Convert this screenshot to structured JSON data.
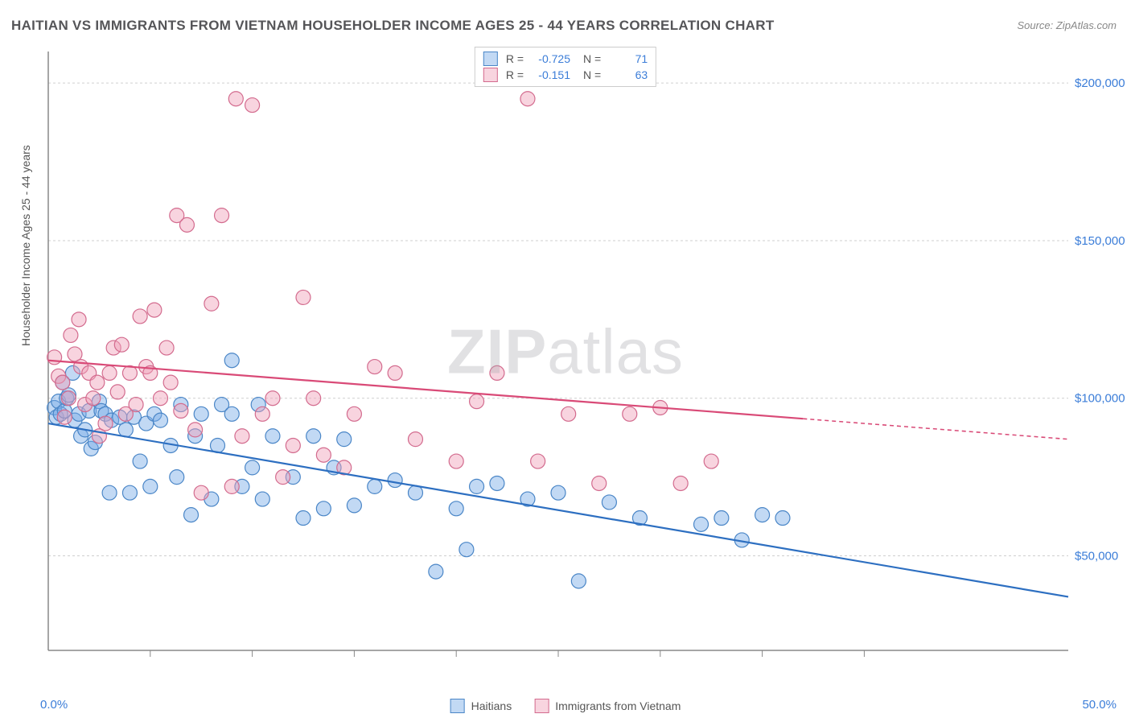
{
  "title": "HAITIAN VS IMMIGRANTS FROM VIETNAM HOUSEHOLDER INCOME AGES 25 - 44 YEARS CORRELATION CHART",
  "source": "Source: ZipAtlas.com",
  "watermark_bold": "ZIP",
  "watermark_rest": "atlas",
  "chart": {
    "type": "scatter",
    "y_axis_label": "Householder Income Ages 25 - 44 years",
    "xlim": [
      0,
      50
    ],
    "ylim": [
      20000,
      210000
    ],
    "x_min_label": "0.0%",
    "x_max_label": "50.0%",
    "x_ticks": [
      5,
      10,
      15,
      20,
      25,
      30,
      35,
      40
    ],
    "y_ticks": [
      50000,
      100000,
      150000,
      200000
    ],
    "y_tick_labels": [
      "$50,000",
      "$100,000",
      "$150,000",
      "$200,000"
    ],
    "grid_color": "#cfcfcf",
    "axis_color": "#888888",
    "axis_label_color": "#3b7dd8",
    "marker_radius": 9,
    "marker_stroke_width": 1.2,
    "line_width": 2.2,
    "series": [
      {
        "name": "Haitians",
        "fill": "rgba(120,170,230,0.45)",
        "stroke": "#4a86c7",
        "line_color": "#2d6fc1",
        "R": "-0.725",
        "N": "71",
        "trend": {
          "x1": 0,
          "y1": 92000,
          "x2": 50,
          "y2": 37000,
          "solid_until_x": 50
        },
        "points": [
          [
            0.3,
            97000
          ],
          [
            0.4,
            94000
          ],
          [
            0.5,
            99000
          ],
          [
            0.6,
            95000
          ],
          [
            0.7,
            105000
          ],
          [
            0.8,
            96000
          ],
          [
            0.9,
            100000
          ],
          [
            1.0,
            101000
          ],
          [
            1.2,
            108000
          ],
          [
            1.3,
            93000
          ],
          [
            1.5,
            95000
          ],
          [
            1.6,
            88000
          ],
          [
            1.8,
            90000
          ],
          [
            2.0,
            96000
          ],
          [
            2.1,
            84000
          ],
          [
            2.3,
            86000
          ],
          [
            2.5,
            99000
          ],
          [
            2.6,
            96000
          ],
          [
            2.8,
            95000
          ],
          [
            3.0,
            70000
          ],
          [
            3.1,
            93000
          ],
          [
            3.5,
            94000
          ],
          [
            3.8,
            90000
          ],
          [
            4.0,
            70000
          ],
          [
            4.2,
            94000
          ],
          [
            4.5,
            80000
          ],
          [
            4.8,
            92000
          ],
          [
            5.0,
            72000
          ],
          [
            5.2,
            95000
          ],
          [
            5.5,
            93000
          ],
          [
            6.0,
            85000
          ],
          [
            6.3,
            75000
          ],
          [
            6.5,
            98000
          ],
          [
            7.0,
            63000
          ],
          [
            7.2,
            88000
          ],
          [
            7.5,
            95000
          ],
          [
            8.0,
            68000
          ],
          [
            8.3,
            85000
          ],
          [
            8.5,
            98000
          ],
          [
            9.0,
            95000
          ],
          [
            9.0,
            112000
          ],
          [
            9.5,
            72000
          ],
          [
            10.0,
            78000
          ],
          [
            10.3,
            98000
          ],
          [
            10.5,
            68000
          ],
          [
            11.0,
            88000
          ],
          [
            12.0,
            75000
          ],
          [
            12.5,
            62000
          ],
          [
            13.0,
            88000
          ],
          [
            13.5,
            65000
          ],
          [
            14.0,
            78000
          ],
          [
            14.5,
            87000
          ],
          [
            15.0,
            66000
          ],
          [
            16.0,
            72000
          ],
          [
            17.0,
            74000
          ],
          [
            18.0,
            70000
          ],
          [
            19.0,
            45000
          ],
          [
            20.0,
            65000
          ],
          [
            20.5,
            52000
          ],
          [
            21.0,
            72000
          ],
          [
            22.0,
            73000
          ],
          [
            23.5,
            68000
          ],
          [
            25.0,
            70000
          ],
          [
            26.0,
            42000
          ],
          [
            27.5,
            67000
          ],
          [
            29.0,
            62000
          ],
          [
            32.0,
            60000
          ],
          [
            33.0,
            62000
          ],
          [
            34.0,
            55000
          ],
          [
            35.0,
            63000
          ],
          [
            36.0,
            62000
          ]
        ]
      },
      {
        "name": "Immigrants from Vietnam",
        "fill": "rgba(240,160,185,0.45)",
        "stroke": "#d36b8e",
        "line_color": "#d94a77",
        "R": "-0.151",
        "N": "63",
        "trend": {
          "x1": 0,
          "y1": 112000,
          "x2": 50,
          "y2": 87000,
          "solid_until_x": 37
        },
        "points": [
          [
            0.3,
            113000
          ],
          [
            0.5,
            107000
          ],
          [
            0.7,
            105000
          ],
          [
            0.8,
            94000
          ],
          [
            1.0,
            100000
          ],
          [
            1.1,
            120000
          ],
          [
            1.3,
            114000
          ],
          [
            1.5,
            125000
          ],
          [
            1.6,
            110000
          ],
          [
            1.8,
            98000
          ],
          [
            2.0,
            108000
          ],
          [
            2.2,
            100000
          ],
          [
            2.4,
            105000
          ],
          [
            2.5,
            88000
          ],
          [
            2.8,
            92000
          ],
          [
            3.0,
            108000
          ],
          [
            3.2,
            116000
          ],
          [
            3.4,
            102000
          ],
          [
            3.6,
            117000
          ],
          [
            3.8,
            95000
          ],
          [
            4.0,
            108000
          ],
          [
            4.3,
            98000
          ],
          [
            4.5,
            126000
          ],
          [
            4.8,
            110000
          ],
          [
            5.0,
            108000
          ],
          [
            5.2,
            128000
          ],
          [
            5.5,
            100000
          ],
          [
            5.8,
            116000
          ],
          [
            6.0,
            105000
          ],
          [
            6.3,
            158000
          ],
          [
            6.5,
            96000
          ],
          [
            6.8,
            155000
          ],
          [
            7.2,
            90000
          ],
          [
            7.5,
            70000
          ],
          [
            8.0,
            130000
          ],
          [
            8.5,
            158000
          ],
          [
            9.0,
            72000
          ],
          [
            9.2,
            195000
          ],
          [
            9.5,
            88000
          ],
          [
            10.0,
            193000
          ],
          [
            10.5,
            95000
          ],
          [
            11.0,
            100000
          ],
          [
            11.5,
            75000
          ],
          [
            12.0,
            85000
          ],
          [
            12.5,
            132000
          ],
          [
            13.0,
            100000
          ],
          [
            13.5,
            82000
          ],
          [
            14.5,
            78000
          ],
          [
            15.0,
            95000
          ],
          [
            16.0,
            110000
          ],
          [
            17.0,
            108000
          ],
          [
            18.0,
            87000
          ],
          [
            20.0,
            80000
          ],
          [
            21.0,
            99000
          ],
          [
            22.0,
            108000
          ],
          [
            23.5,
            195000
          ],
          [
            24.0,
            80000
          ],
          [
            25.5,
            95000
          ],
          [
            27.0,
            73000
          ],
          [
            28.5,
            95000
          ],
          [
            30.0,
            97000
          ],
          [
            31.0,
            73000
          ],
          [
            32.5,
            80000
          ]
        ]
      }
    ],
    "legend": {
      "stats_label_R": "R =",
      "stats_label_N": "N ="
    }
  }
}
